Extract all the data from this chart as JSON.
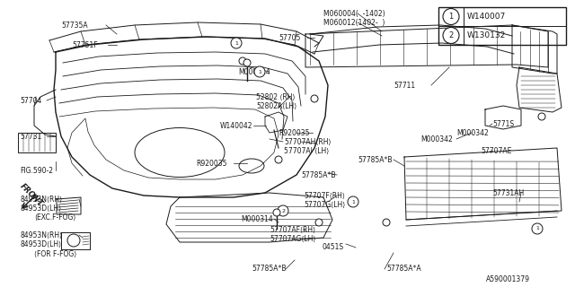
{
  "bg_color": "#ffffff",
  "line_color": "#1a1a1a",
  "diagram_id": "A590001379",
  "legend": [
    {
      "num": "1",
      "code": "W140007"
    },
    {
      "num": "2",
      "code": "W130132"
    }
  ]
}
